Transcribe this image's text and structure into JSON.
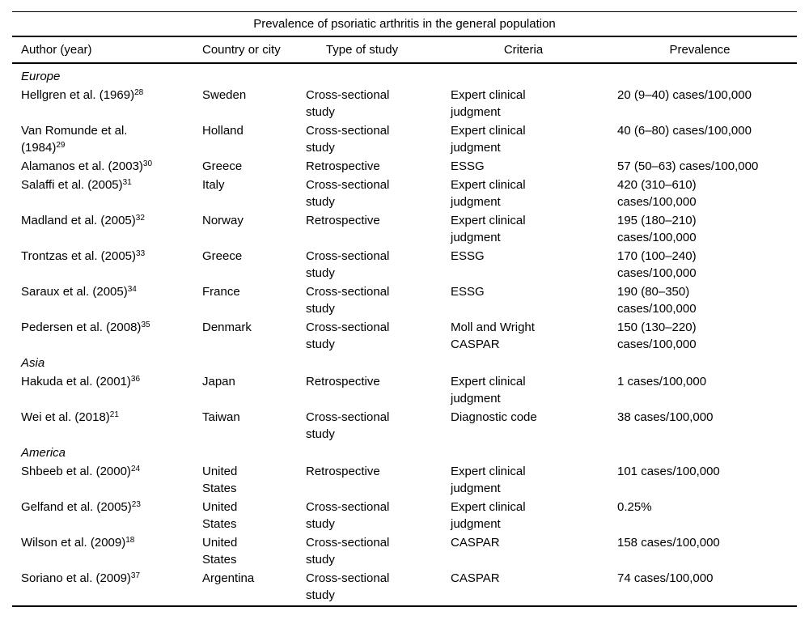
{
  "table": {
    "title": "Prevalence of psoriatic arthritis in the general population",
    "columns": {
      "author": "Author (year)",
      "country": "Country or city",
      "type": "Type of study",
      "criteria": "Criteria",
      "prevalence": "Prevalence"
    },
    "sections": [
      {
        "region": "Europe",
        "rows": [
          {
            "author": {
              "lines": [
                "Hellgren et al. (1969)"
              ],
              "ref": "28"
            },
            "country": [
              "Sweden"
            ],
            "type": [
              "Cross-sectional",
              "study"
            ],
            "criteria": [
              "Expert clinical",
              "judgment"
            ],
            "prevalence": [
              "20 (9–40) cases/100,000"
            ]
          },
          {
            "author": {
              "lines": [
                "Van Romunde et al.",
                "(1984)"
              ],
              "ref": "29"
            },
            "country": [
              "Holland"
            ],
            "type": [
              "Cross-sectional",
              "study"
            ],
            "criteria": [
              "Expert clinical",
              "judgment"
            ],
            "prevalence": [
              "40 (6–80) cases/100,000"
            ]
          },
          {
            "author": {
              "lines": [
                "Alamanos et al. (2003)"
              ],
              "ref": "30"
            },
            "country": [
              "Greece"
            ],
            "type": [
              "Retrospective"
            ],
            "criteria": [
              "ESSG"
            ],
            "prevalence": [
              "57 (50–63) cases/100,000"
            ]
          },
          {
            "author": {
              "lines": [
                "Salaffi et al. (2005)"
              ],
              "ref": "31"
            },
            "country": [
              "Italy"
            ],
            "type": [
              "Cross-sectional",
              "study"
            ],
            "criteria": [
              "Expert clinical",
              "judgment"
            ],
            "prevalence": [
              "420 (310–610)",
              "cases/100,000"
            ]
          },
          {
            "author": {
              "lines": [
                "Madland et al. (2005)"
              ],
              "ref": "32"
            },
            "country": [
              "Norway"
            ],
            "type": [
              "Retrospective"
            ],
            "criteria": [
              "Expert clinical",
              "judgment"
            ],
            "prevalence": [
              "195 (180–210)",
              "cases/100,000"
            ]
          },
          {
            "author": {
              "lines": [
                "Trontzas et al. (2005)"
              ],
              "ref": "33"
            },
            "country": [
              "Greece"
            ],
            "type": [
              "Cross-sectional",
              "study"
            ],
            "criteria": [
              "ESSG"
            ],
            "prevalence": [
              "170 (100–240)",
              "cases/100,000"
            ]
          },
          {
            "author": {
              "lines": [
                "Saraux et al. (2005)"
              ],
              "ref": "34"
            },
            "country": [
              "France"
            ],
            "type": [
              "Cross-sectional",
              "study"
            ],
            "criteria": [
              "ESSG"
            ],
            "prevalence": [
              "190 (80–350)",
              "cases/100,000"
            ]
          },
          {
            "author": {
              "lines": [
                "Pedersen et al. (2008)"
              ],
              "ref": "35"
            },
            "country": [
              "Denmark"
            ],
            "type": [
              "Cross-sectional",
              "study"
            ],
            "criteria": [
              "Moll and Wright",
              "CASPAR"
            ],
            "prevalence": [
              "150 (130–220)",
              "cases/100,000"
            ]
          }
        ]
      },
      {
        "region": "Asia",
        "rows": [
          {
            "author": {
              "lines": [
                "Hakuda et al. (2001)"
              ],
              "ref": "36"
            },
            "country": [
              "Japan"
            ],
            "type": [
              "Retrospective"
            ],
            "criteria": [
              "Expert clinical",
              "judgment"
            ],
            "prevalence": [
              "1 cases/100,000"
            ]
          },
          {
            "author": {
              "lines": [
                "Wei et al. (2018)"
              ],
              "ref": "21"
            },
            "country": [
              "Taiwan"
            ],
            "type": [
              "Cross-sectional",
              "study"
            ],
            "criteria": [
              "Diagnostic code"
            ],
            "prevalence": [
              "38 cases/100,000"
            ]
          }
        ]
      },
      {
        "region": "America",
        "rows": [
          {
            "author": {
              "lines": [
                "Shbeeb et al. (2000)"
              ],
              "ref": "24"
            },
            "country": [
              "United",
              "States"
            ],
            "type": [
              "Retrospective"
            ],
            "criteria": [
              "Expert clinical",
              "judgment"
            ],
            "prevalence": [
              "101 cases/100,000"
            ]
          },
          {
            "author": {
              "lines": [
                "Gelfand et al. (2005)"
              ],
              "ref": "23"
            },
            "country": [
              "United",
              "States"
            ],
            "type": [
              "Cross-sectional",
              "study"
            ],
            "criteria": [
              "Expert clinical",
              "judgment"
            ],
            "prevalence": [
              "0.25%"
            ]
          },
          {
            "author": {
              "lines": [
                "Wilson et al. (2009)"
              ],
              "ref": "18"
            },
            "country": [
              "United",
              "States"
            ],
            "type": [
              "Cross-sectional",
              "study"
            ],
            "criteria": [
              "CASPAR"
            ],
            "prevalence": [
              "158 cases/100,000"
            ]
          },
          {
            "author": {
              "lines": [
                "Soriano et al. (2009)"
              ],
              "ref": "37"
            },
            "country": [
              "Argentina"
            ],
            "type": [
              "Cross-sectional",
              "study"
            ],
            "criteria": [
              "CASPAR"
            ],
            "prevalence": [
              "74 cases/100,000"
            ]
          }
        ]
      }
    ]
  }
}
